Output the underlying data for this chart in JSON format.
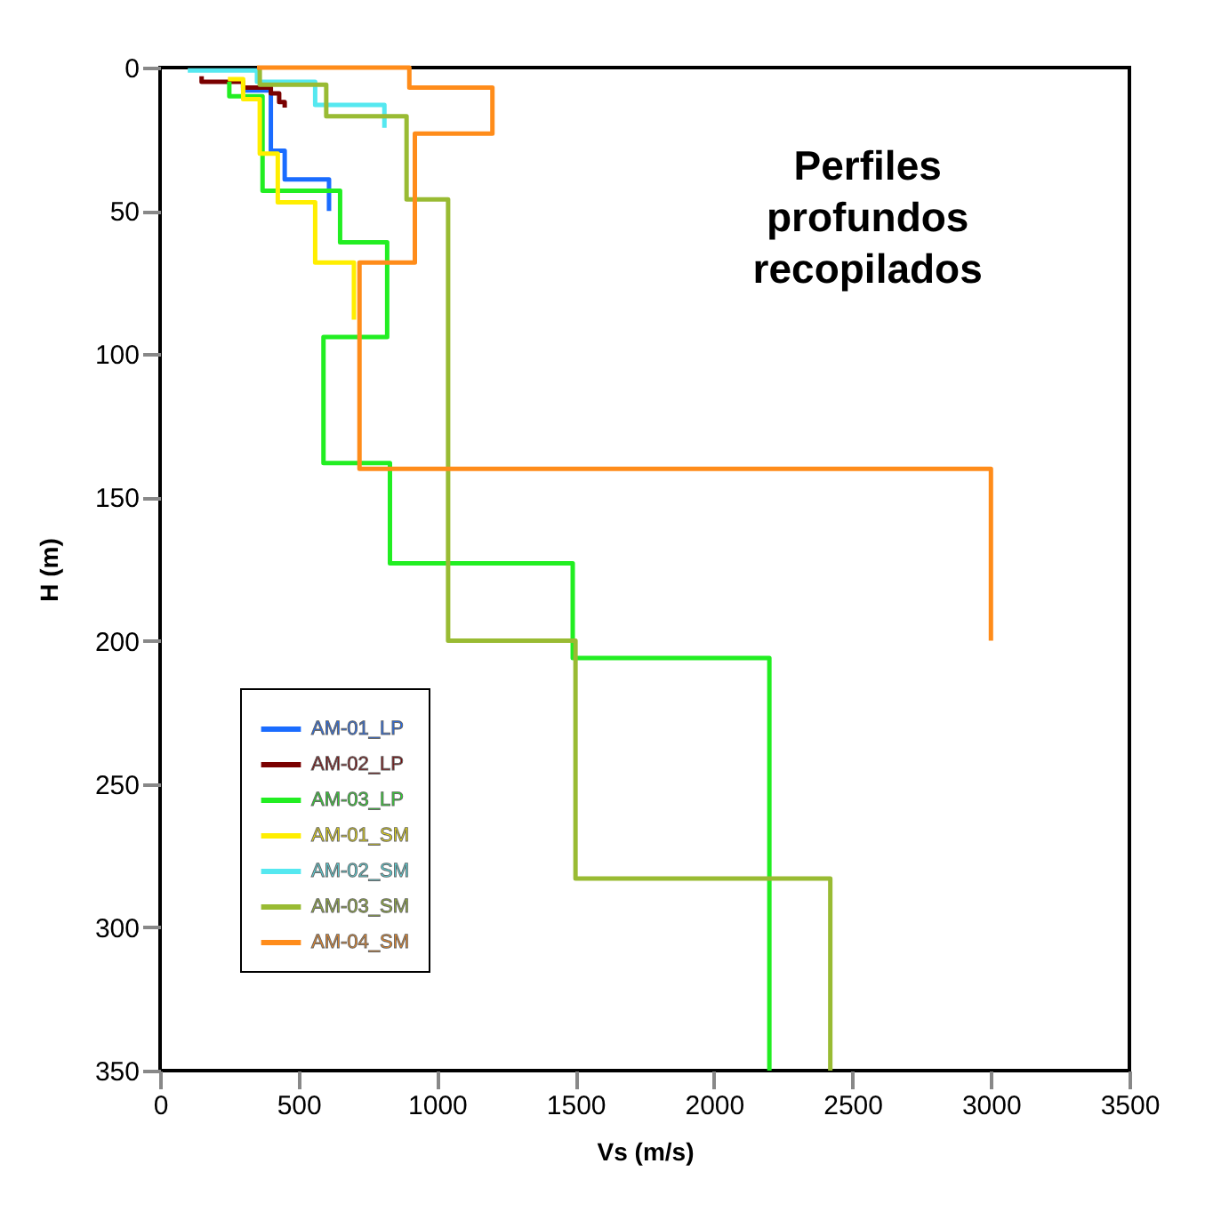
{
  "chart_data": {
    "type": "step",
    "xlabel": "Vs (m/s)",
    "ylabel": "H (m)",
    "xlim": [
      0,
      3500
    ],
    "xticks": [
      0,
      500,
      1000,
      1500,
      2000,
      2500,
      3000,
      3500
    ],
    "ylim": [
      350,
      0
    ],
    "yticks": [
      0,
      50,
      100,
      150,
      200,
      250,
      300,
      350
    ],
    "grid": false,
    "legend": "bottom left",
    "marker": "none",
    "line_style": "solid",
    "annotations": [
      "Perfiles profundos recopilados"
    ],
    "series": [
      {
        "name": "AM-01_LP",
        "color": "#1a6cff",
        "x": [
          300,
          300,
          400,
          400,
          450,
          450,
          610,
          610
        ],
        "values": [
          5,
          8,
          8,
          29,
          29,
          39,
          39,
          50
        ]
      },
      {
        "name": "AM-02_LP",
        "color": "#7a0000",
        "x": [
          150,
          150,
          300,
          300,
          400,
          400,
          430,
          430,
          450,
          450
        ],
        "values": [
          3,
          5,
          5,
          7,
          7,
          9,
          9,
          12,
          12,
          14
        ]
      },
      {
        "name": "AM-03_LP",
        "color": "#22ee22",
        "x": [
          250,
          250,
          370,
          370,
          650,
          650,
          820,
          820,
          590,
          590,
          830,
          830,
          1490,
          1490,
          2200,
          2200
        ],
        "values": [
          5,
          10,
          10,
          43,
          43,
          61,
          61,
          94,
          94,
          138,
          138,
          173,
          173,
          206,
          206,
          350
        ]
      },
      {
        "name": "AM-01_SM",
        "color": "#ffee00",
        "x": [
          245,
          300,
          300,
          360,
          360,
          425,
          425,
          560,
          560,
          700,
          700
        ],
        "values": [
          4,
          4,
          11,
          11,
          30,
          30,
          47,
          47,
          68,
          68,
          88
        ]
      },
      {
        "name": "AM-02_SM",
        "color": "#55e8f0",
        "x": [
          100,
          350,
          350,
          560,
          560,
          810,
          810
        ],
        "values": [
          1,
          1,
          5,
          5,
          13,
          13,
          21
        ]
      },
      {
        "name": "AM-03_SM",
        "color": "#99bb33",
        "x": [
          360,
          360,
          600,
          600,
          890,
          890,
          1040,
          1040,
          1500,
          1500,
          2420,
          2420
        ],
        "values": [
          0,
          6,
          6,
          17,
          17,
          46,
          46,
          200,
          200,
          283,
          283,
          350
        ]
      },
      {
        "name": "AM-04_SM",
        "color": "#ff8c1a",
        "x": [
          350,
          900,
          900,
          1200,
          1200,
          920,
          920,
          720,
          720,
          3000,
          3000
        ],
        "values": [
          0,
          0,
          7,
          7,
          23,
          23,
          68,
          68,
          140,
          140,
          200
        ]
      }
    ]
  }
}
